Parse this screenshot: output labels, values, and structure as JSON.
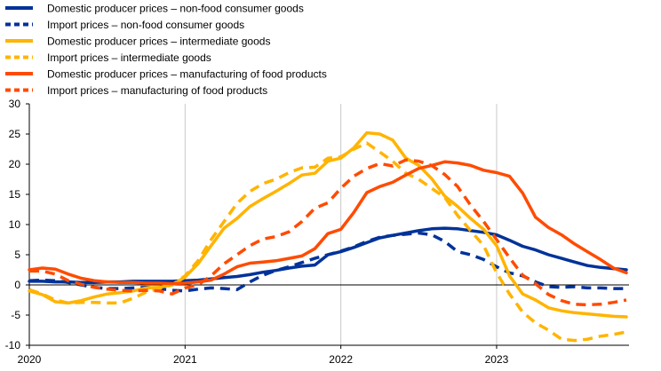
{
  "chart_data": {
    "type": "line",
    "title": "",
    "xlabel": "",
    "ylabel": "",
    "ylim": [
      -10,
      30
    ],
    "yticks": [
      -10,
      -5,
      0,
      5,
      10,
      15,
      20,
      25,
      30
    ],
    "xlim": [
      2020.0,
      2023.85
    ],
    "xtick_labels": [
      "2020",
      "2021",
      "2022",
      "2023"
    ],
    "grid": "vertical",
    "legend_position": "top-left",
    "series": [
      {
        "name": "Domestic producer prices – non-food consumer goods",
        "color": "#003299",
        "dashed": false,
        "points": [
          [
            2020.0,
            0.6
          ],
          [
            2020.083,
            0.6
          ],
          [
            2020.167,
            0.5
          ],
          [
            2020.25,
            0.5
          ],
          [
            2020.333,
            0.4
          ],
          [
            2020.417,
            0.4
          ],
          [
            2020.5,
            0.5
          ],
          [
            2020.583,
            0.5
          ],
          [
            2020.667,
            0.6
          ],
          [
            2020.75,
            0.6
          ],
          [
            2020.833,
            0.6
          ],
          [
            2020.917,
            0.6
          ],
          [
            2021.0,
            0.7
          ],
          [
            2021.083,
            0.8
          ],
          [
            2021.167,
            1.0
          ],
          [
            2021.25,
            1.2
          ],
          [
            2021.333,
            1.4
          ],
          [
            2021.417,
            1.7
          ],
          [
            2021.5,
            2.1
          ],
          [
            2021.583,
            2.4
          ],
          [
            2021.667,
            2.8
          ],
          [
            2021.75,
            3.1
          ],
          [
            2021.833,
            3.3
          ],
          [
            2021.917,
            5.0
          ],
          [
            2022.0,
            5.5
          ],
          [
            2022.083,
            6.2
          ],
          [
            2022.167,
            7.0
          ],
          [
            2022.25,
            7.8
          ],
          [
            2022.333,
            8.2
          ],
          [
            2022.417,
            8.6
          ],
          [
            2022.5,
            9.0
          ],
          [
            2022.583,
            9.3
          ],
          [
            2022.667,
            9.4
          ],
          [
            2022.75,
            9.3
          ],
          [
            2022.833,
            9.0
          ],
          [
            2022.917,
            8.7
          ],
          [
            2023.0,
            8.3
          ],
          [
            2023.083,
            7.4
          ],
          [
            2023.167,
            6.4
          ],
          [
            2023.25,
            5.8
          ],
          [
            2023.333,
            5.0
          ],
          [
            2023.417,
            4.4
          ],
          [
            2023.5,
            3.8
          ],
          [
            2023.583,
            3.2
          ],
          [
            2023.667,
            2.9
          ],
          [
            2023.75,
            2.7
          ],
          [
            2023.833,
            2.5
          ]
        ]
      },
      {
        "name": "Import prices – non-food consumer goods",
        "color": "#003299",
        "dashed": true,
        "points": [
          [
            2020.0,
            0.7
          ],
          [
            2020.083,
            0.8
          ],
          [
            2020.167,
            0.7
          ],
          [
            2020.25,
            0.4
          ],
          [
            2020.333,
            0.0
          ],
          [
            2020.417,
            -0.4
          ],
          [
            2020.5,
            -0.6
          ],
          [
            2020.583,
            -0.6
          ],
          [
            2020.667,
            -0.5
          ],
          [
            2020.75,
            -0.4
          ],
          [
            2020.833,
            -0.6
          ],
          [
            2020.917,
            -0.9
          ],
          [
            2021.0,
            -1.0
          ],
          [
            2021.083,
            -0.7
          ],
          [
            2021.167,
            -0.5
          ],
          [
            2021.25,
            -0.6
          ],
          [
            2021.333,
            -0.8
          ],
          [
            2021.417,
            0.5
          ],
          [
            2021.5,
            1.6
          ],
          [
            2021.583,
            2.4
          ],
          [
            2021.667,
            3.0
          ],
          [
            2021.75,
            3.7
          ],
          [
            2021.833,
            4.4
          ],
          [
            2021.917,
            5.0
          ],
          [
            2022.0,
            5.6
          ],
          [
            2022.083,
            6.3
          ],
          [
            2022.167,
            7.2
          ],
          [
            2022.25,
            7.9
          ],
          [
            2022.333,
            8.2
          ],
          [
            2022.417,
            8.4
          ],
          [
            2022.5,
            8.6
          ],
          [
            2022.583,
            8.3
          ],
          [
            2022.667,
            7.2
          ],
          [
            2022.75,
            5.5
          ],
          [
            2022.833,
            5.0
          ],
          [
            2022.917,
            4.2
          ],
          [
            2023.0,
            3.0
          ],
          [
            2023.083,
            2.0
          ],
          [
            2023.167,
            1.5
          ],
          [
            2023.25,
            0.5
          ],
          [
            2023.333,
            -0.3
          ],
          [
            2023.417,
            -0.4
          ],
          [
            2023.5,
            -0.3
          ],
          [
            2023.583,
            -0.5
          ],
          [
            2023.667,
            -0.5
          ],
          [
            2023.75,
            -0.6
          ],
          [
            2023.833,
            -0.6
          ]
        ]
      },
      {
        "name": "Domestic producer prices – intermediate goods",
        "color": "#ffb400",
        "dashed": false,
        "points": [
          [
            2020.0,
            -1.0
          ],
          [
            2020.083,
            -1.6
          ],
          [
            2020.167,
            -2.8
          ],
          [
            2020.25,
            -3.0
          ],
          [
            2020.333,
            -2.6
          ],
          [
            2020.417,
            -2.0
          ],
          [
            2020.5,
            -1.5
          ],
          [
            2020.583,
            -1.3
          ],
          [
            2020.667,
            -1.0
          ],
          [
            2020.75,
            -0.5
          ],
          [
            2020.833,
            -0.4
          ],
          [
            2020.917,
            0.0
          ],
          [
            2021.0,
            1.3
          ],
          [
            2021.083,
            3.5
          ],
          [
            2021.167,
            6.5
          ],
          [
            2021.25,
            9.4
          ],
          [
            2021.333,
            11.0
          ],
          [
            2021.417,
            13.0
          ],
          [
            2021.5,
            14.3
          ],
          [
            2021.583,
            15.5
          ],
          [
            2021.667,
            16.8
          ],
          [
            2021.75,
            18.2
          ],
          [
            2021.833,
            18.5
          ],
          [
            2021.917,
            20.5
          ],
          [
            2022.0,
            21.0
          ],
          [
            2022.083,
            22.7
          ],
          [
            2022.167,
            25.2
          ],
          [
            2022.25,
            25.0
          ],
          [
            2022.333,
            24.0
          ],
          [
            2022.417,
            21.0
          ],
          [
            2022.5,
            19.8
          ],
          [
            2022.583,
            17.6
          ],
          [
            2022.667,
            14.7
          ],
          [
            2022.75,
            13.0
          ],
          [
            2022.833,
            11.0
          ],
          [
            2022.917,
            9.2
          ],
          [
            2023.0,
            6.5
          ],
          [
            2023.083,
            1.5
          ],
          [
            2023.167,
            -1.5
          ],
          [
            2023.25,
            -2.5
          ],
          [
            2023.333,
            -3.8
          ],
          [
            2023.417,
            -4.3
          ],
          [
            2023.5,
            -4.6
          ],
          [
            2023.583,
            -4.8
          ],
          [
            2023.667,
            -5.0
          ],
          [
            2023.75,
            -5.2
          ],
          [
            2023.833,
            -5.3
          ]
        ]
      },
      {
        "name": "Import prices – intermediate goods",
        "color": "#ffb400",
        "dashed": true,
        "points": [
          [
            2020.0,
            -0.8
          ],
          [
            2020.083,
            -1.5
          ],
          [
            2020.167,
            -2.5
          ],
          [
            2020.25,
            -3.0
          ],
          [
            2020.333,
            -2.9
          ],
          [
            2020.417,
            -2.9
          ],
          [
            2020.5,
            -3.0
          ],
          [
            2020.583,
            -3.0
          ],
          [
            2020.667,
            -2.2
          ],
          [
            2020.75,
            -1.2
          ],
          [
            2020.833,
            -0.6
          ],
          [
            2020.917,
            0.0
          ],
          [
            2021.0,
            1.5
          ],
          [
            2021.083,
            4.0
          ],
          [
            2021.167,
            7.5
          ],
          [
            2021.25,
            10.5
          ],
          [
            2021.333,
            13.5
          ],
          [
            2021.417,
            15.5
          ],
          [
            2021.5,
            16.8
          ],
          [
            2021.583,
            17.5
          ],
          [
            2021.667,
            18.6
          ],
          [
            2021.75,
            19.4
          ],
          [
            2021.833,
            19.5
          ],
          [
            2021.917,
            21.0
          ],
          [
            2022.0,
            21.2
          ],
          [
            2022.083,
            22.5
          ],
          [
            2022.167,
            23.5
          ],
          [
            2022.25,
            22.0
          ],
          [
            2022.333,
            20.5
          ],
          [
            2022.417,
            18.5
          ],
          [
            2022.5,
            17.5
          ],
          [
            2022.583,
            16.0
          ],
          [
            2022.667,
            14.5
          ],
          [
            2022.75,
            11.5
          ],
          [
            2022.833,
            9.0
          ],
          [
            2022.917,
            6.5
          ],
          [
            2023.0,
            2.0
          ],
          [
            2023.083,
            -1.5
          ],
          [
            2023.167,
            -4.5
          ],
          [
            2023.25,
            -6.3
          ],
          [
            2023.333,
            -7.5
          ],
          [
            2023.417,
            -9.0
          ],
          [
            2023.5,
            -9.2
          ],
          [
            2023.583,
            -9.0
          ],
          [
            2023.667,
            -8.5
          ],
          [
            2023.75,
            -8.2
          ],
          [
            2023.833,
            -7.8
          ]
        ]
      },
      {
        "name": "Domestic producer prices – manufacturing of food products",
        "color": "#ff4b00",
        "dashed": false,
        "points": [
          [
            2020.0,
            2.5
          ],
          [
            2020.083,
            2.8
          ],
          [
            2020.167,
            2.6
          ],
          [
            2020.25,
            1.8
          ],
          [
            2020.333,
            1.1
          ],
          [
            2020.417,
            0.7
          ],
          [
            2020.5,
            0.5
          ],
          [
            2020.583,
            0.4
          ],
          [
            2020.667,
            0.4
          ],
          [
            2020.75,
            0.3
          ],
          [
            2020.833,
            0.3
          ],
          [
            2020.917,
            0.2
          ],
          [
            2021.0,
            0.3
          ],
          [
            2021.083,
            0.5
          ],
          [
            2021.167,
            0.8
          ],
          [
            2021.25,
            1.8
          ],
          [
            2021.333,
            3.0
          ],
          [
            2021.417,
            3.6
          ],
          [
            2021.5,
            3.8
          ],
          [
            2021.583,
            4.0
          ],
          [
            2021.667,
            4.4
          ],
          [
            2021.75,
            4.8
          ],
          [
            2021.833,
            6.0
          ],
          [
            2021.917,
            8.5
          ],
          [
            2022.0,
            9.2
          ],
          [
            2022.083,
            12.0
          ],
          [
            2022.167,
            15.3
          ],
          [
            2022.25,
            16.3
          ],
          [
            2022.333,
            17.0
          ],
          [
            2022.417,
            18.2
          ],
          [
            2022.5,
            19.3
          ],
          [
            2022.583,
            19.8
          ],
          [
            2022.667,
            20.4
          ],
          [
            2022.75,
            20.2
          ],
          [
            2022.833,
            19.8
          ],
          [
            2022.917,
            19.0
          ],
          [
            2023.0,
            18.6
          ],
          [
            2023.083,
            18.0
          ],
          [
            2023.167,
            15.2
          ],
          [
            2023.25,
            11.2
          ],
          [
            2023.333,
            9.5
          ],
          [
            2023.417,
            8.3
          ],
          [
            2023.5,
            6.8
          ],
          [
            2023.583,
            5.5
          ],
          [
            2023.667,
            4.2
          ],
          [
            2023.75,
            2.8
          ],
          [
            2023.833,
            2.0
          ]
        ]
      },
      {
        "name": "Import prices – manufacturing of food products",
        "color": "#ff4b00",
        "dashed": true,
        "points": [
          [
            2020.0,
            2.3
          ],
          [
            2020.083,
            2.3
          ],
          [
            2020.167,
            1.8
          ],
          [
            2020.25,
            0.7
          ],
          [
            2020.333,
            0.1
          ],
          [
            2020.417,
            -0.4
          ],
          [
            2020.5,
            -0.7
          ],
          [
            2020.583,
            -0.9
          ],
          [
            2020.667,
            -1.0
          ],
          [
            2020.75,
            -0.9
          ],
          [
            2020.833,
            -1.0
          ],
          [
            2020.917,
            -1.5
          ],
          [
            2021.0,
            -0.5
          ],
          [
            2021.083,
            0.0
          ],
          [
            2021.167,
            1.5
          ],
          [
            2021.25,
            3.5
          ],
          [
            2021.333,
            5.0
          ],
          [
            2021.417,
            6.5
          ],
          [
            2021.5,
            7.6
          ],
          [
            2021.583,
            8.0
          ],
          [
            2021.667,
            8.8
          ],
          [
            2021.75,
            10.5
          ],
          [
            2021.833,
            12.7
          ],
          [
            2021.917,
            13.6
          ],
          [
            2022.0,
            16.0
          ],
          [
            2022.083,
            18.0
          ],
          [
            2022.167,
            19.3
          ],
          [
            2022.25,
            20.1
          ],
          [
            2022.333,
            19.7
          ],
          [
            2022.417,
            20.7
          ],
          [
            2022.5,
            20.5
          ],
          [
            2022.583,
            19.8
          ],
          [
            2022.667,
            18.3
          ],
          [
            2022.75,
            16.3
          ],
          [
            2022.833,
            13.2
          ],
          [
            2022.917,
            10.5
          ],
          [
            2023.0,
            7.5
          ],
          [
            2023.083,
            4.5
          ],
          [
            2023.167,
            1.6
          ],
          [
            2023.25,
            0.2
          ],
          [
            2023.333,
            -1.6
          ],
          [
            2023.417,
            -2.6
          ],
          [
            2023.5,
            -3.2
          ],
          [
            2023.583,
            -3.3
          ],
          [
            2023.667,
            -3.2
          ],
          [
            2023.75,
            -2.9
          ],
          [
            2023.833,
            -2.5
          ]
        ]
      }
    ]
  }
}
